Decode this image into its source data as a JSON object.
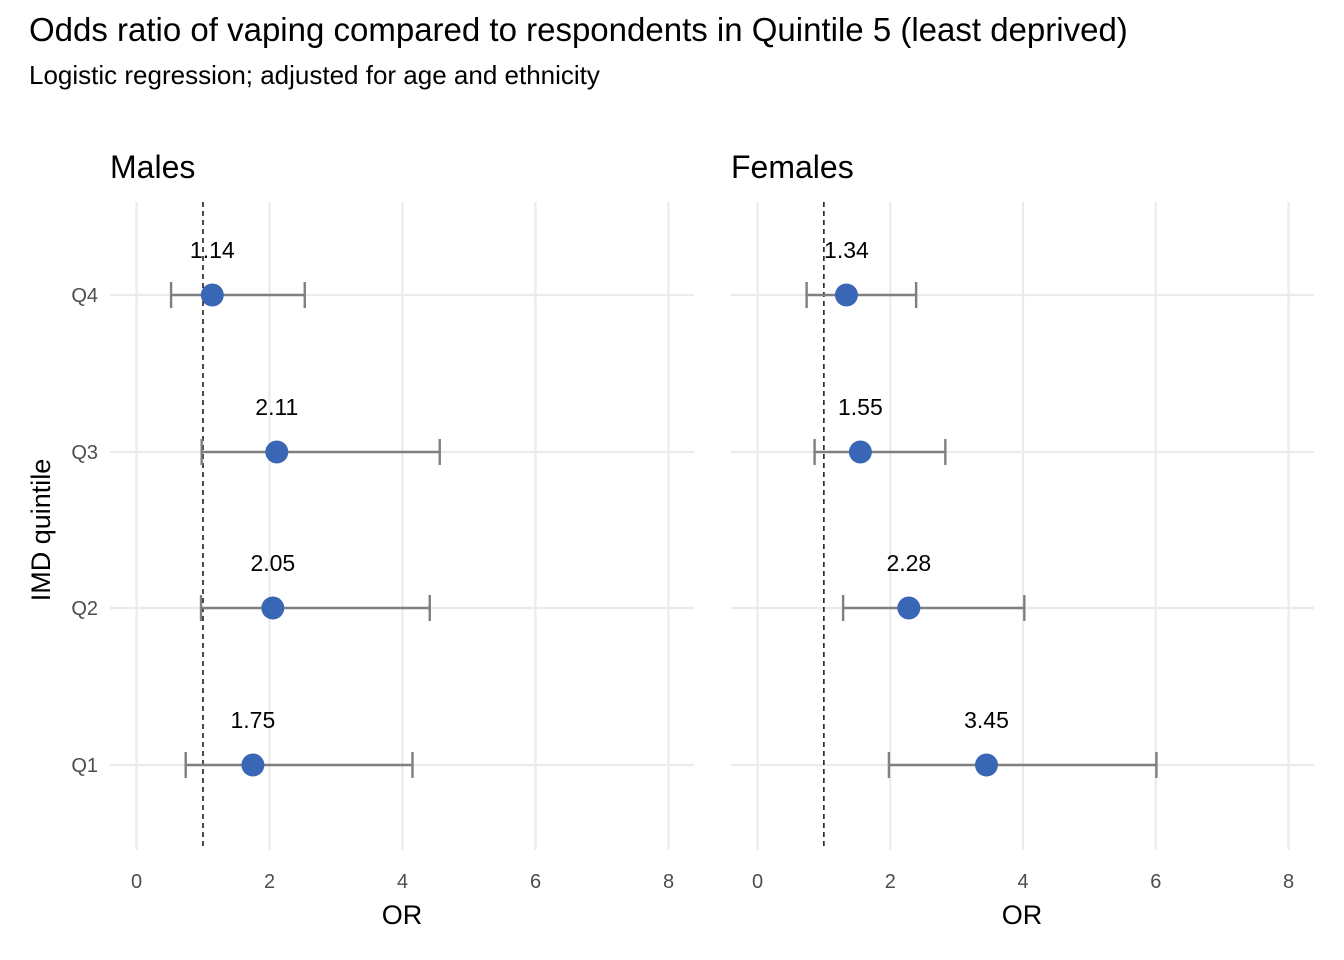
{
  "chart_data": {
    "type": "scatter",
    "title": "Odds ratio of vaping compared to respondents in Quintile 5 (least deprived)",
    "subtitle": "Logistic regression; adjusted for age and ethnicity",
    "xlabel": "OR",
    "ylabel": "IMD quintile",
    "categories": [
      "Q4",
      "Q3",
      "Q2",
      "Q1"
    ],
    "xlim": [
      0,
      8.4
    ],
    "xticks": [
      0,
      2,
      4,
      6,
      8
    ],
    "reference_line": 1,
    "grid": true,
    "point_color": "#3A67B5",
    "ci_color": "#7F7F7F",
    "panels": [
      {
        "name": "Males",
        "points": [
          {
            "quintile": "Q4",
            "or": 1.14,
            "label": "1.14",
            "lower": 0.52,
            "upper": 2.53
          },
          {
            "quintile": "Q3",
            "or": 2.11,
            "label": "2.11",
            "lower": 0.98,
            "upper": 4.56
          },
          {
            "quintile": "Q2",
            "or": 2.05,
            "label": "2.05",
            "lower": 0.97,
            "upper": 4.41
          },
          {
            "quintile": "Q1",
            "or": 1.75,
            "label": "1.75",
            "lower": 0.74,
            "upper": 4.15
          }
        ]
      },
      {
        "name": "Females",
        "points": [
          {
            "quintile": "Q4",
            "or": 1.34,
            "label": "1.34",
            "lower": 0.74,
            "upper": 2.39
          },
          {
            "quintile": "Q3",
            "or": 1.55,
            "label": "1.55",
            "lower": 0.86,
            "upper": 2.83
          },
          {
            "quintile": "Q2",
            "or": 2.28,
            "label": "2.28",
            "lower": 1.29,
            "upper": 4.02
          },
          {
            "quintile": "Q1",
            "or": 3.45,
            "label": "3.45",
            "lower": 1.98,
            "upper": 6.01
          }
        ]
      }
    ]
  }
}
